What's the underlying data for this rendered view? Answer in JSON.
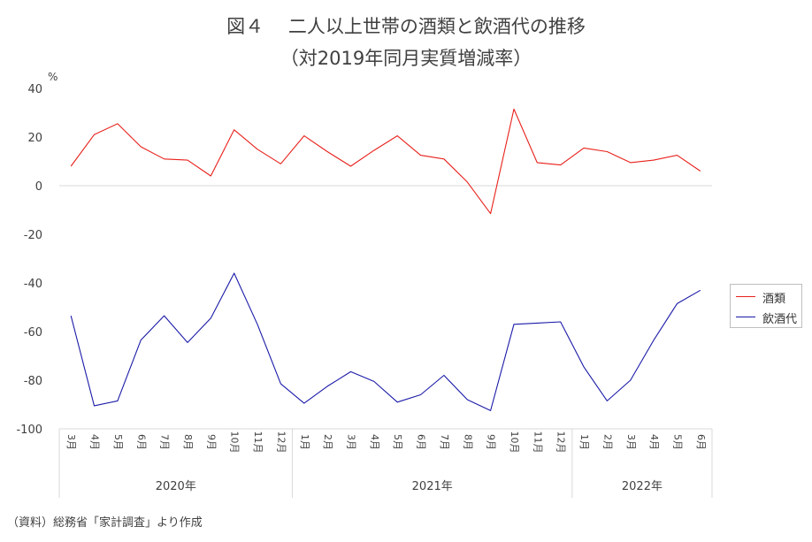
{
  "title_line1": "図４　 二人以上世帯の酒類と飲酒代の推移",
  "title_line2": "（対2019年同月実質増減率）",
  "unit_label": "%",
  "source_note": "（資料）総務省「家計調査」より作成",
  "chart_data": {
    "type": "line",
    "ylim": [
      -100,
      40
    ],
    "yticks": [
      40,
      20,
      0,
      -20,
      -40,
      -60,
      -80,
      -100
    ],
    "grid": false,
    "legend_position": "right",
    "x": [
      "3月",
      "4月",
      "5月",
      "6月",
      "7月",
      "8月",
      "9月",
      "10月",
      "11月",
      "12月",
      "1月",
      "2月",
      "3月",
      "4月",
      "5月",
      "6月",
      "7月",
      "8月",
      "9月",
      "10月",
      "11月",
      "12月",
      "1月",
      "2月",
      "3月",
      "4月",
      "5月",
      "6月"
    ],
    "year_groups": [
      {
        "label": "2020年",
        "count": 10
      },
      {
        "label": "2021年",
        "count": 12
      },
      {
        "label": "2022年",
        "count": 6
      }
    ],
    "series": [
      {
        "name": "酒類",
        "color": "#e8201a",
        "values": [
          8,
          21,
          25.5,
          16,
          11,
          10.5,
          4,
          23,
          15,
          9,
          20.5,
          14,
          8,
          14.5,
          20.5,
          12.5,
          11,
          1.5,
          -11.5,
          31.5,
          9.5,
          8.5,
          15.5,
          14,
          9.5,
          10.5,
          12.5,
          6
        ]
      },
      {
        "name": "飲酒代",
        "color": "#1a1aa8",
        "values": [
          -53.5,
          -90.5,
          -88.5,
          -63.5,
          -53.5,
          -64.5,
          -54.5,
          -36,
          -57,
          -81.5,
          -89.5,
          -82.5,
          -76.5,
          -80.5,
          -89,
          -86,
          -78,
          -88,
          -92.5,
          -57,
          -56.5,
          -56,
          -74.5,
          -88.5,
          -80,
          -63.5,
          -48.5,
          -43
        ]
      }
    ]
  }
}
